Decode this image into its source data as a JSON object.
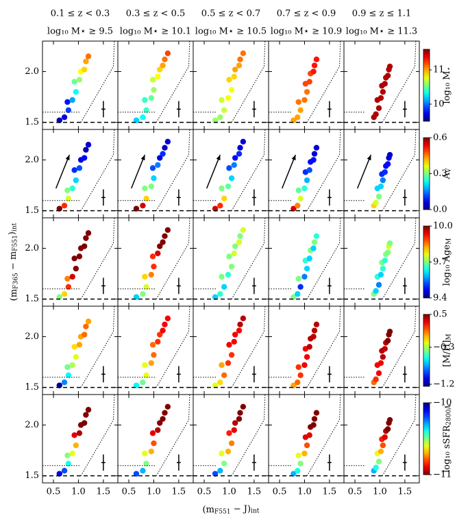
{
  "chart_data": {
    "type": "scatter",
    "x_label": [
      {
        "text": "(m"
      },
      {
        "sub": "F551"
      },
      {
        "text": " − J)"
      },
      {
        "sub": "int"
      }
    ],
    "y_label": [
      {
        "text": "(m"
      },
      {
        "sub": "F365"
      },
      {
        "text": " − m"
      },
      {
        "sub": "F551"
      },
      {
        "text": ")"
      },
      {
        "sub": "int"
      }
    ],
    "xlim": [
      0.28,
      1.79
    ],
    "xticks": [
      0.5,
      {
        "value": 1,
        "label": "1.0"
      },
      1.5
    ],
    "ylim": [
      1.43,
      2.3
    ],
    "yticks": [
      1.5,
      {
        "value": 2,
        "label": "2.0"
      }
    ],
    "baseline_y": 1.5,
    "cut_y": 1.6,
    "selection_line": {
      "x": [
        1.05,
        1.7,
        1.72
      ],
      "y": [
        1.5,
        2.05,
        2.3
      ]
    },
    "errorbar": {
      "x": 1.5,
      "y": 1.63,
      "xerr": 0.04,
      "yerr": 0.08
    },
    "columns": [
      {
        "title": "0.1 ≤ z < 0.3",
        "subtitle": "log₁₀ M⋆ ≥ 9.5",
        "cut_x": 1.02,
        "x": [
          0.62,
          0.72,
          0.8,
          0.78,
          0.88,
          0.95,
          0.92,
          1.02,
          1.05,
          1.12,
          1.15,
          1.2
        ],
        "y": [
          1.52,
          1.55,
          1.62,
          1.7,
          1.72,
          1.8,
          1.9,
          1.92,
          2.0,
          2.02,
          2.1,
          2.15
        ]
      },
      {
        "title": "0.3 ≤ z < 0.5",
        "subtitle": "log₁₀ M⋆ ≥ 10.1",
        "cut_x": 1.05,
        "x": [
          0.65,
          0.78,
          0.85,
          0.82,
          0.95,
          1.0,
          0.98,
          1.08,
          1.12,
          1.18,
          1.22,
          1.28
        ],
        "y": [
          1.52,
          1.55,
          1.62,
          1.72,
          1.74,
          1.82,
          1.92,
          1.95,
          2.02,
          2.06,
          2.12,
          2.18
        ]
      },
      {
        "title": "0.5 ≤ z < 0.7",
        "subtitle": "log₁₀ M⋆ ≥ 10.5",
        "cut_x": 0.74,
        "x": [
          0.72,
          0.82,
          0.9,
          0.85,
          0.98,
          1.05,
          1.0,
          1.1,
          1.12,
          1.2,
          1.22,
          1.28
        ],
        "y": [
          1.52,
          1.55,
          1.62,
          1.72,
          1.74,
          1.82,
          1.92,
          1.95,
          2.02,
          2.06,
          2.12,
          2.18
        ]
      },
      {
        "title": "0.7 ≤ z < 0.9",
        "subtitle": "log₁₀ M⋆ ≥ 10.9",
        "cut_x": 0.75,
        "x": [
          0.78,
          0.86,
          0.92,
          0.88,
          1.0,
          1.05,
          1.02,
          1.1,
          1.12,
          1.18,
          1.2,
          1.24
        ],
        "y": [
          1.52,
          1.55,
          1.62,
          1.7,
          1.72,
          1.8,
          1.88,
          1.9,
          1.98,
          2.0,
          2.06,
          2.12
        ]
      },
      {
        "title": "0.9 ≤ z ≤ 1.1",
        "subtitle": "log₁₀ M⋆ ≥ 11.3",
        "cut_x": 0.7,
        "x": [
          0.88,
          0.92,
          0.98,
          0.95,
          1.02,
          1.06,
          1.04,
          1.1,
          1.12,
          1.16,
          1.18,
          1.2
        ],
        "y": [
          1.55,
          1.58,
          1.64,
          1.72,
          1.74,
          1.8,
          1.86,
          1.88,
          1.94,
          1.96,
          2.02,
          2.05
        ]
      }
    ],
    "rows": [
      {
        "colorbar_label": [
          {
            "text": "log₁₀ M"
          },
          {
            "sub": "⋆"
          }
        ],
        "colormap": "jet",
        "clim": [
          9.5,
          11.6
        ],
        "cticks": [
          10,
          11
        ],
        "colors": [
          [
            9.6,
            9.7,
            9.9,
            9.8,
            10.1,
            10.3,
            10.5,
            10.6,
            10.8,
            10.9,
            11.0,
            11.1
          ],
          [
            10.2,
            10.3,
            10.4,
            10.4,
            10.5,
            10.6,
            10.7,
            10.8,
            10.9,
            11.0,
            11.1,
            11.2
          ],
          [
            10.6,
            10.6,
            10.7,
            10.7,
            10.8,
            10.8,
            10.9,
            10.9,
            11.0,
            11.0,
            11.1,
            11.1
          ],
          [
            11.0,
            11.0,
            11.0,
            11.1,
            11.1,
            11.1,
            11.2,
            11.2,
            11.2,
            11.3,
            11.3,
            11.3
          ],
          [
            11.5,
            11.5,
            11.5,
            11.5,
            11.5,
            11.5,
            11.5,
            11.5,
            11.5,
            11.5,
            11.5,
            11.5
          ]
        ]
      },
      {
        "colorbar_label": [
          {
            "text": "A"
          },
          {
            "sub": "V"
          }
        ],
        "colormap": "jet",
        "clim": [
          0,
          0.6
        ],
        "cticks": [
          {
            "value": 0,
            "label": "0.0"
          },
          0.3,
          0.6
        ],
        "reddening_vector": {
          "x": [
            0.55,
            0.82
          ],
          "y": [
            1.72,
            2.05
          ]
        },
        "colors": [
          [
            0.6,
            0.5,
            0.35,
            0.3,
            0.25,
            0.2,
            0.1,
            0.12,
            0.05,
            0.08,
            0.03,
            0.05
          ],
          [
            0.6,
            0.55,
            0.4,
            0.3,
            0.3,
            0.2,
            0.12,
            0.15,
            0.06,
            0.1,
            0.04,
            0.05
          ],
          [
            0.55,
            0.5,
            0.4,
            0.3,
            0.28,
            0.2,
            0.12,
            0.15,
            0.08,
            0.1,
            0.05,
            0.05
          ],
          [
            0.55,
            0.45,
            0.35,
            0.28,
            0.25,
            0.18,
            0.1,
            0.12,
            0.08,
            0.08,
            0.05,
            0.05
          ],
          [
            0.4,
            0.35,
            0.3,
            0.2,
            0.2,
            0.15,
            0.1,
            0.1,
            0.08,
            0.08,
            0.05,
            0.05
          ]
        ]
      },
      {
        "colorbar_label": [
          {
            "text": "log₁₀ Age"
          },
          {
            "sub": "M"
          }
        ],
        "colormap": "jet",
        "clim": [
          9.4,
          10.0
        ],
        "cticks": [
          9.4,
          9.7,
          {
            "value": 10,
            "label": "10.0"
          }
        ],
        "colors": [
          [
            9.7,
            9.8,
            9.9,
            9.85,
            9.95,
            10.0,
            10.0,
            10.0,
            10.0,
            10.0,
            10.0,
            10.0
          ],
          [
            9.6,
            9.7,
            9.75,
            9.8,
            9.85,
            9.9,
            9.9,
            9.95,
            10,
            10,
            10,
            10
          ],
          [
            9.6,
            9.65,
            9.6,
            9.7,
            9.65,
            9.7,
            9.7,
            9.75,
            9.7,
            9.75,
            9.7,
            9.75
          ],
          [
            9.7,
            9.6,
            9.5,
            9.7,
            9.55,
            9.6,
            9.65,
            9.6,
            9.7,
            9.6,
            9.7,
            9.65
          ],
          [
            9.7,
            9.6,
            9.55,
            9.65,
            9.6,
            9.65,
            9.7,
            9.65,
            9.7,
            9.7,
            9.75,
            9.7
          ]
        ]
      },
      {
        "colorbar_label": [
          {
            "text": "[M/H]"
          },
          {
            "sub": "M"
          }
        ],
        "colormap": "jet",
        "clim": [
          -1.25,
          0.5
        ],
        "cticks": [
          {
            "value": -1.2,
            "label": "−1.2"
          },
          {
            "value": -0.3,
            "label": "−0.3"
          },
          0.5
        ],
        "colors": [
          [
            -1.2,
            -0.8,
            -0.6,
            -0.4,
            -0.3,
            -0.2,
            -0.1,
            0.0,
            0.0,
            0.1,
            0.1,
            0.0
          ],
          [
            -0.6,
            -0.4,
            -0.2,
            -0.2,
            0.0,
            0.1,
            0.1,
            0.2,
            0.2,
            0.3,
            0.3,
            0.3
          ],
          [
            -0.2,
            -0.1,
            0.1,
            0.0,
            0.2,
            0.2,
            0.3,
            0.3,
            0.3,
            0.3,
            0.4,
            0.4
          ],
          [
            0.0,
            0.1,
            0.2,
            0.2,
            0.3,
            0.3,
            0.3,
            0.4,
            0.4,
            0.4,
            0.4,
            0.4
          ],
          [
            0.1,
            0.2,
            0.3,
            0.3,
            0.3,
            0.4,
            0.4,
            0.4,
            0.4,
            0.5,
            0.5,
            0.5
          ]
        ]
      },
      {
        "colorbar_label": [
          {
            "text": "log₁₀ sSFR"
          },
          {
            "sub": "2800Å"
          }
        ],
        "colormap": "jet_r",
        "clim": [
          -11,
          -10
        ],
        "cticks": [
          {
            "value": -10,
            "label": "−10"
          },
          {
            "value": -11,
            "label": "−11"
          }
        ],
        "colors": [
          [
            -10.1,
            -10.2,
            -10.4,
            -10.5,
            -10.6,
            -10.7,
            -10.9,
            -10.95,
            -11,
            -11,
            -11,
            -11
          ],
          [
            -10.2,
            -10.3,
            -10.5,
            -10.6,
            -10.7,
            -10.8,
            -10.9,
            -10.95,
            -11,
            -11,
            -11,
            -11
          ],
          [
            -10.2,
            -10.3,
            -10.5,
            -10.6,
            -10.7,
            -10.75,
            -10.85,
            -10.9,
            -10.95,
            -11,
            -11,
            -11
          ],
          [
            -10.3,
            -10.4,
            -10.5,
            -10.6,
            -10.7,
            -10.8,
            -10.9,
            -10.9,
            -11,
            -11,
            -11,
            -11
          ],
          [
            -10.3,
            -10.4,
            -10.5,
            -10.6,
            -10.7,
            -10.8,
            -10.85,
            -10.9,
            -10.95,
            -11,
            -11,
            -11
          ]
        ]
      }
    ]
  }
}
